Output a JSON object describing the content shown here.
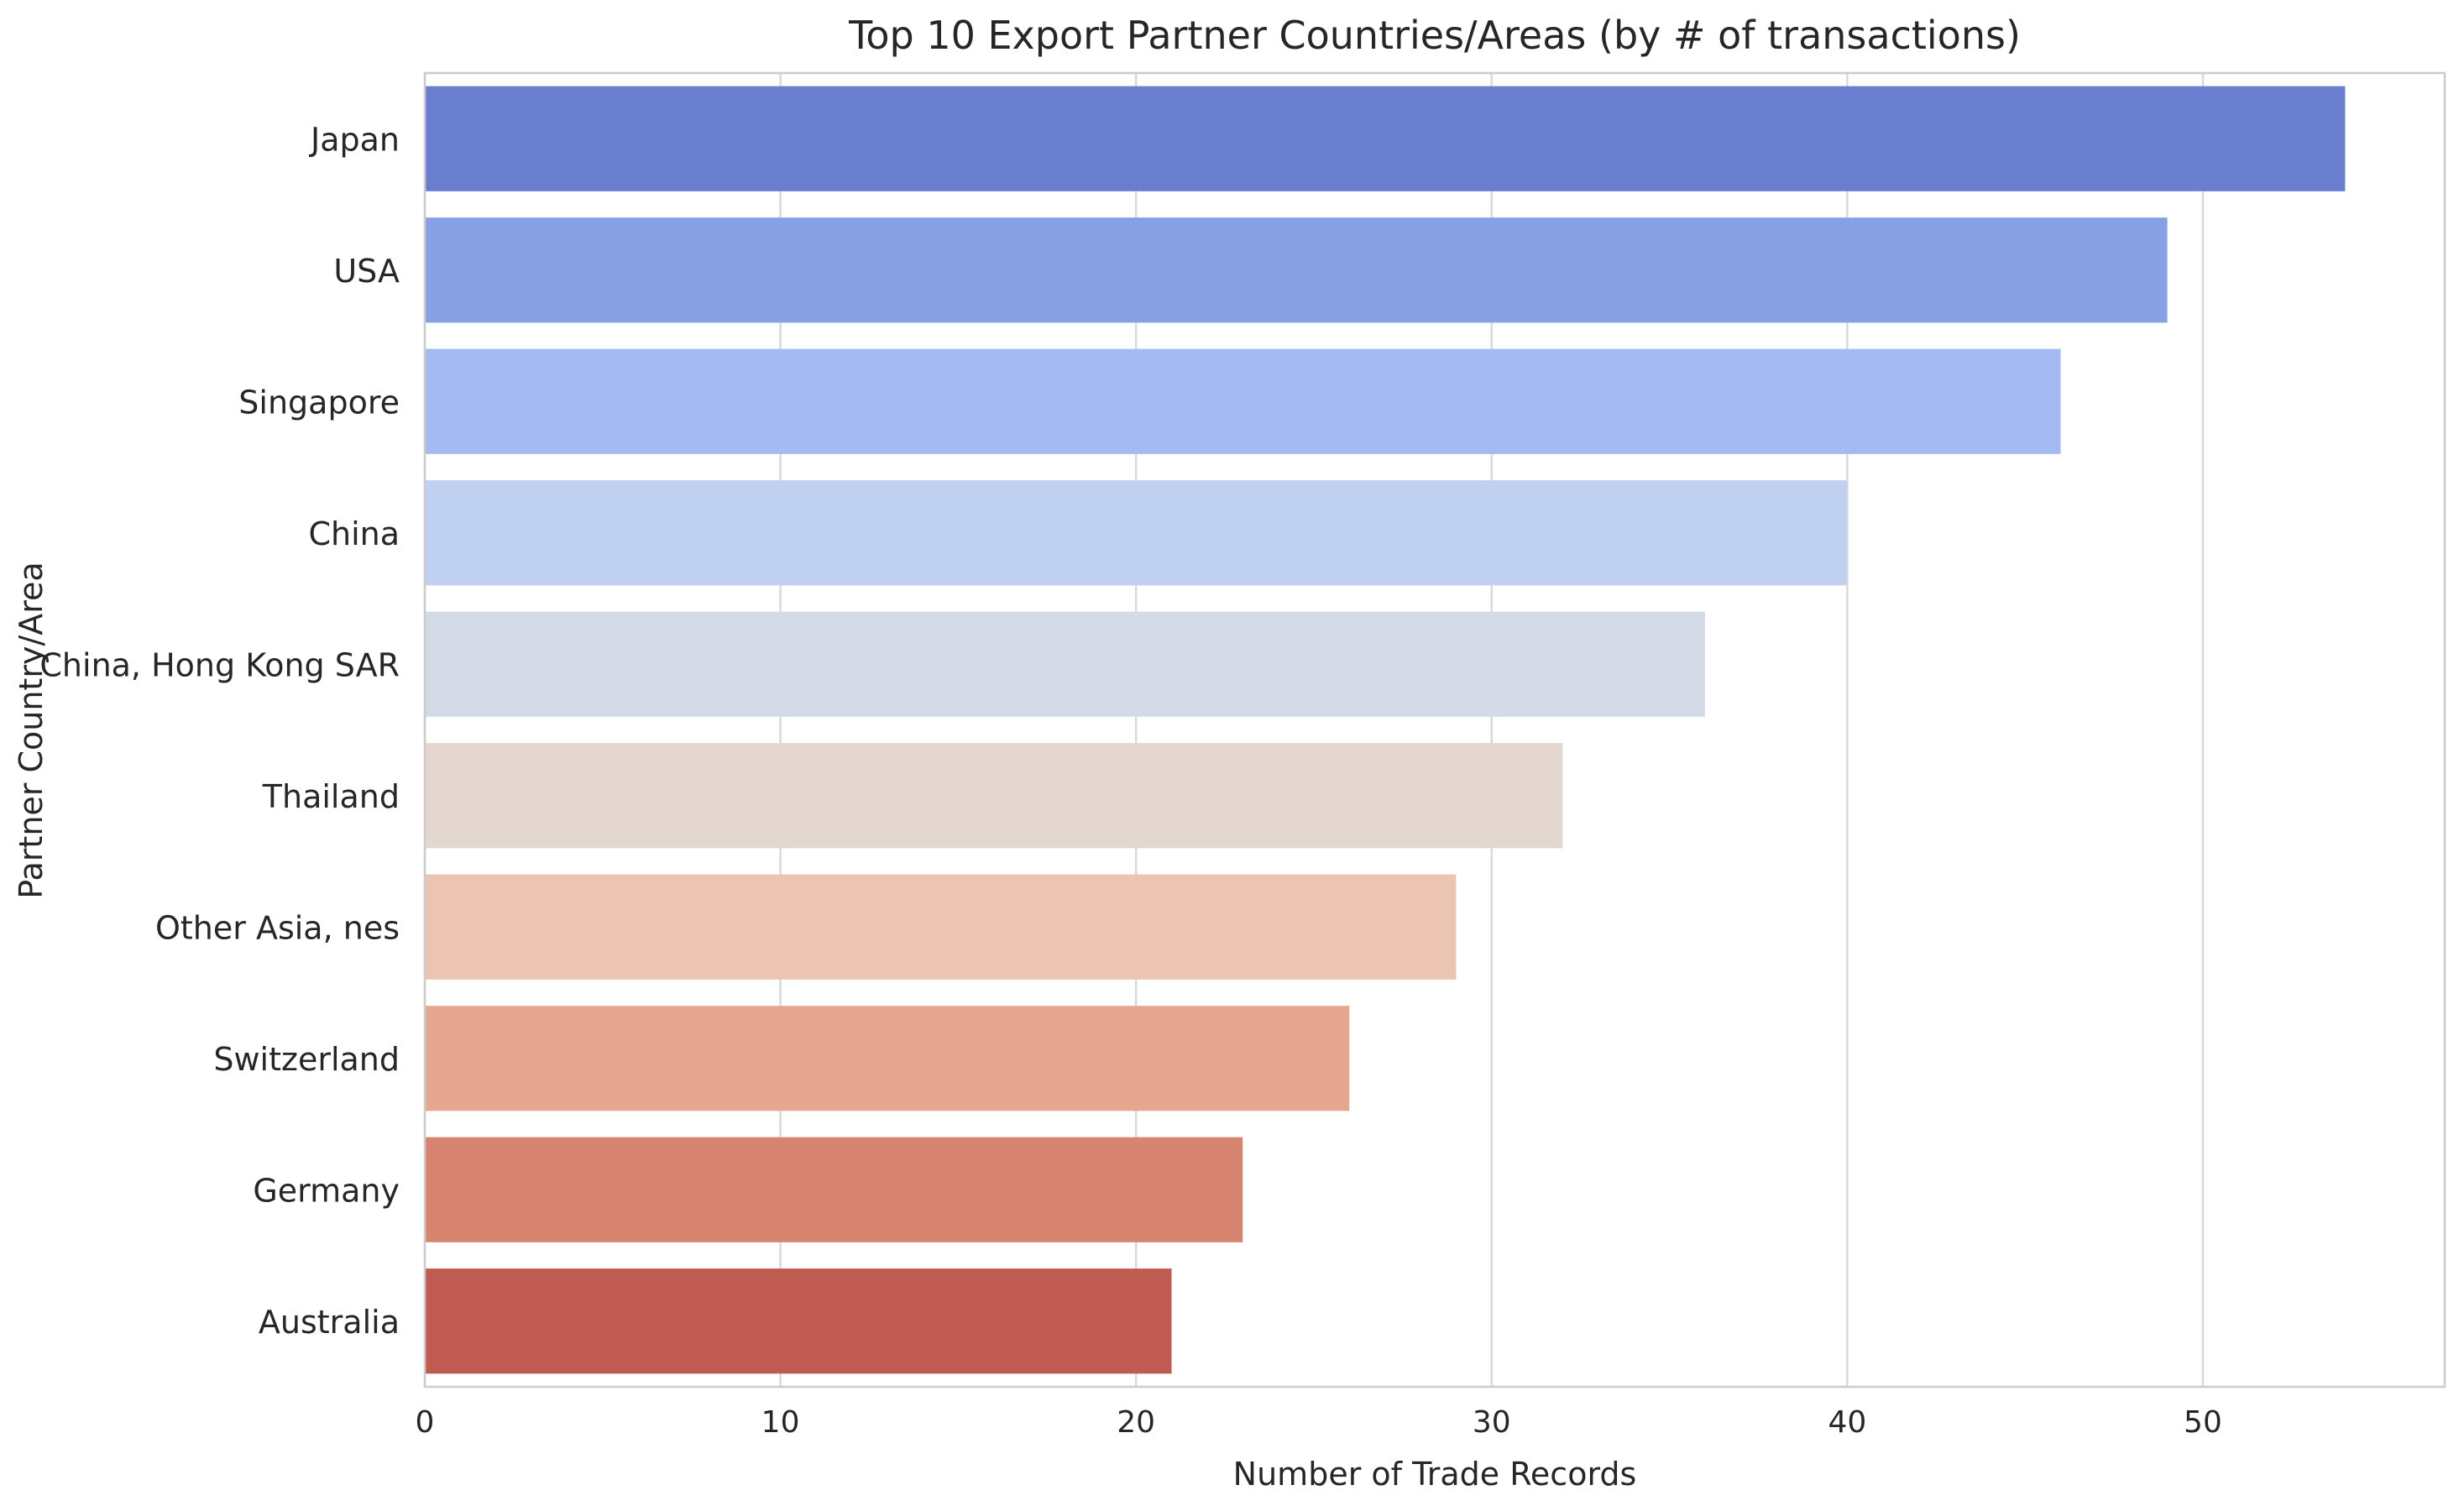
{
  "chart_data": {
    "type": "bar",
    "orientation": "horizontal",
    "title": "Top 10 Export Partner Countries/Areas (by # of transactions)",
    "xlabel": "Number of Trade Records",
    "ylabel": "Partner Country/Area",
    "categories": [
      "Japan",
      "USA",
      "Singapore",
      "China",
      "China, Hong Kong SAR",
      "Thailand",
      "Other Asia, nes",
      "Switzerland",
      "Germany",
      "Australia"
    ],
    "values": [
      54,
      49,
      46,
      40,
      36,
      32,
      29,
      26,
      23,
      21
    ],
    "colors": [
      "#6a7ecf",
      "#86a0e3",
      "#a3bbf2",
      "#bfd0f0",
      "#d5dbe6",
      "#e4d7cf",
      "#ecc4b2",
      "#e5a78f",
      "#d78570",
      "#c05b51"
    ],
    "xlim": [
      0,
      56.8
    ],
    "xticks": [
      0,
      10,
      20,
      30,
      40,
      50
    ],
    "grid": "vertical",
    "legend": "none"
  }
}
